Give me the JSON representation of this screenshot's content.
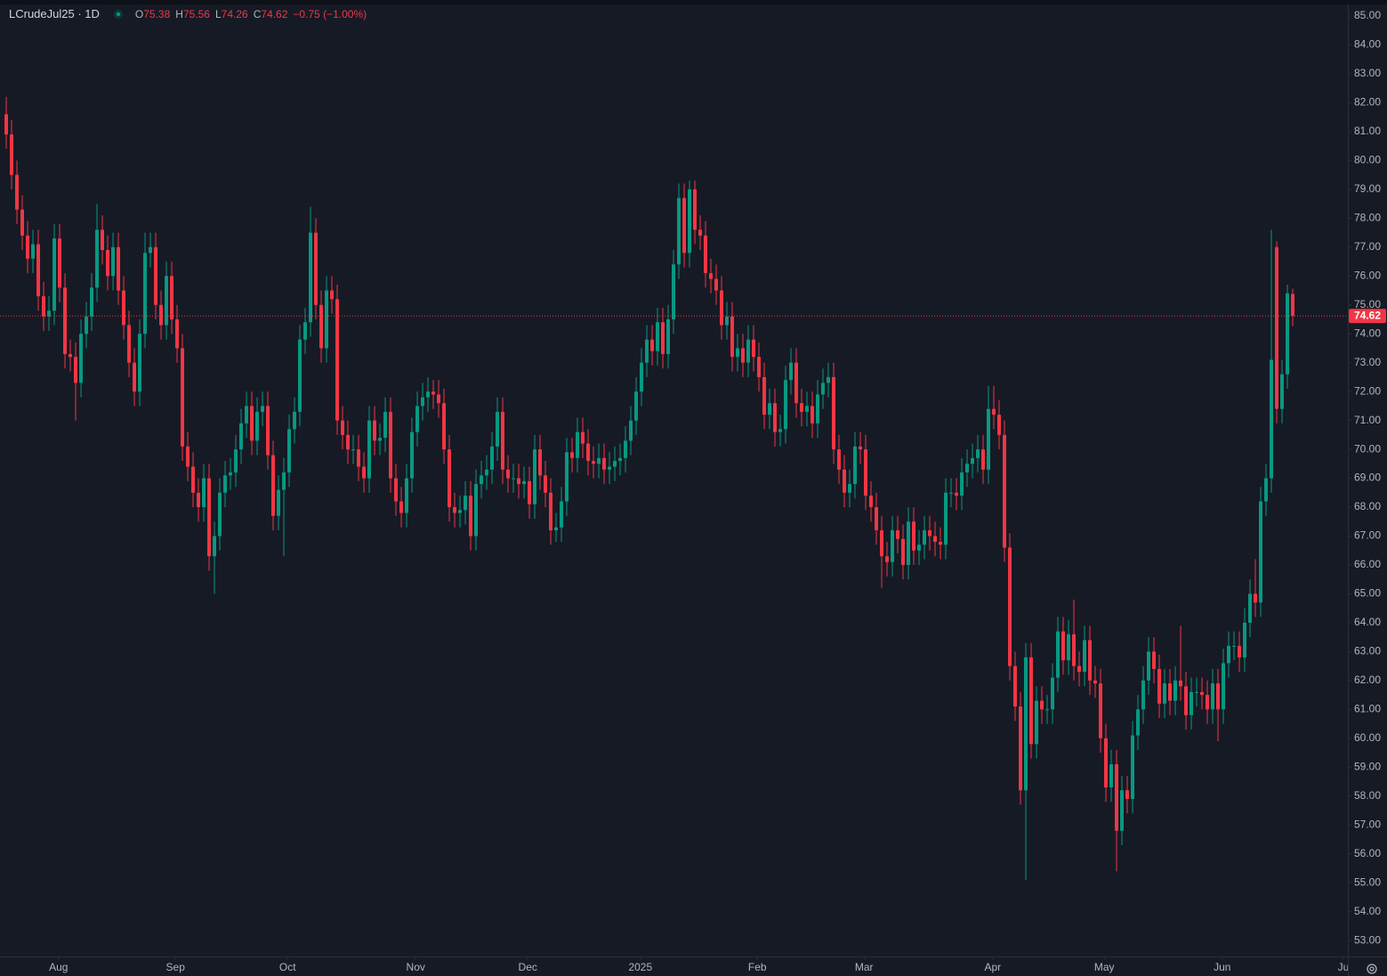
{
  "chart_data": {
    "type": "candlestick",
    "title": "LCrudeJul25 · 1D",
    "ohlc_letters": [
      "O",
      "H",
      "L",
      "C"
    ],
    "change": "−0.75 (−1.00%)",
    "up_color": "#089981",
    "down_color": "#f23645",
    "price_line": true,
    "series": {
      "open": [
        81.6,
        80.9,
        79.5,
        78.3,
        77.4,
        76.6,
        77.1,
        75.3,
        74.6,
        74.8,
        77.3,
        75.6,
        73.3,
        73.2,
        72.3,
        74.0,
        74.6,
        75.6,
        77.6,
        76.9,
        76.0,
        77.0,
        75.5,
        74.3,
        73.0,
        72.0,
        74.0,
        76.8,
        77.0,
        75.0,
        74.3,
        76.0,
        74.5,
        73.5,
        70.1,
        69.4,
        68.5,
        68.0,
        69.0,
        66.3,
        67.0,
        68.5,
        69.1,
        69.2,
        70.0,
        70.9,
        71.5,
        70.3,
        71.3,
        71.5,
        69.8,
        67.7,
        68.6,
        69.2,
        70.7,
        71.3,
        73.8,
        74.4,
        77.5,
        75.0,
        73.5,
        75.5,
        75.2,
        71.0,
        70.5,
        70.0,
        70.0,
        69.4,
        69.0,
        71.0,
        70.3,
        70.4,
        71.3,
        69.0,
        68.2,
        67.8,
        69.0,
        70.6,
        71.5,
        71.8,
        72.0,
        71.9,
        71.6,
        70.0,
        68.0,
        67.8,
        67.9,
        68.4,
        67.0,
        68.8,
        69.1,
        69.3,
        70.1,
        71.3,
        69.3,
        69.0,
        69.0,
        68.8,
        68.9,
        68.1,
        70.0,
        69.1,
        68.5,
        67.2,
        67.3,
        68.2,
        69.9,
        69.7,
        70.6,
        70.2,
        69.6,
        69.5,
        69.7,
        69.3,
        69.4,
        69.6,
        69.7,
        70.3,
        71.0,
        72.0,
        73.0,
        73.8,
        73.4,
        74.4,
        73.3,
        74.5,
        76.4,
        78.7,
        76.8,
        79.0,
        77.6,
        77.4,
        76.1,
        75.9,
        75.5,
        74.3,
        74.6,
        73.2,
        73.5,
        73.0,
        73.8,
        73.2,
        72.5,
        71.2,
        71.6,
        70.6,
        70.7,
        72.4,
        73.0,
        71.6,
        71.3,
        71.5,
        70.9,
        71.9,
        72.3,
        72.5,
        70.0,
        69.3,
        68.5,
        68.8,
        70.1,
        70.0,
        68.4,
        68.0,
        67.2,
        66.3,
        66.1,
        67.2,
        66.9,
        66.0,
        67.5,
        66.5,
        66.7,
        67.2,
        67.0,
        66.8,
        66.7,
        68.5,
        68.5,
        68.4,
        69.2,
        69.5,
        69.7,
        70.0,
        69.3,
        71.4,
        71.2,
        70.5,
        66.6,
        62.5,
        61.1,
        58.2,
        62.8,
        59.8,
        61.3,
        61.0,
        61.0,
        62.1,
        63.7,
        62.7,
        63.6,
        62.5,
        62.3,
        63.4,
        62.0,
        61.9,
        60.0,
        58.3,
        59.1,
        56.8,
        58.2,
        57.9,
        60.1,
        61.0,
        62.0,
        63.0,
        62.4,
        61.2,
        61.9,
        61.3,
        62.0,
        61.8,
        60.8,
        61.6,
        61.6,
        61.5,
        61.0,
        61.9,
        61.0,
        62.6,
        63.2,
        63.2,
        62.8,
        64.0,
        65.0,
        64.7,
        68.2,
        69.0,
        77.0,
        71.4,
        72.6,
        75.38
      ],
      "high": [
        82.2,
        81.4,
        80.0,
        78.8,
        77.9,
        77.6,
        77.6,
        75.8,
        75.3,
        77.8,
        77.8,
        76.1,
        73.8,
        73.7,
        74.5,
        75.1,
        76.1,
        78.5,
        78.1,
        77.4,
        77.5,
        77.5,
        76.0,
        74.8,
        73.5,
        74.5,
        77.5,
        77.5,
        77.5,
        75.5,
        76.5,
        76.5,
        75.0,
        74.0,
        70.6,
        69.9,
        69.0,
        69.5,
        69.5,
        67.5,
        69.0,
        69.6,
        69.7,
        70.5,
        71.4,
        72.0,
        72.0,
        71.8,
        72.0,
        72.0,
        70.3,
        69.1,
        69.7,
        71.2,
        71.8,
        74.3,
        74.9,
        78.4,
        78.0,
        75.5,
        76.0,
        76.0,
        75.7,
        71.5,
        71.0,
        70.5,
        70.5,
        69.9,
        71.5,
        71.5,
        70.9,
        71.8,
        71.8,
        69.5,
        68.7,
        69.5,
        71.1,
        72.0,
        72.3,
        72.5,
        72.4,
        72.4,
        72.1,
        70.5,
        68.5,
        68.4,
        68.9,
        68.9,
        69.3,
        69.6,
        69.8,
        70.6,
        71.8,
        71.8,
        69.8,
        69.5,
        69.5,
        69.4,
        69.4,
        70.5,
        70.5,
        69.6,
        69.0,
        67.8,
        68.7,
        70.4,
        70.4,
        71.1,
        71.1,
        70.7,
        70.1,
        70.2,
        70.2,
        69.9,
        70.1,
        70.2,
        70.8,
        71.5,
        72.5,
        73.5,
        74.3,
        74.3,
        74.9,
        74.9,
        75.0,
        76.9,
        79.2,
        79.2,
        79.3,
        79.3,
        78.1,
        77.9,
        76.6,
        76.4,
        76.0,
        75.1,
        75.1,
        74.0,
        74.0,
        74.3,
        74.3,
        73.7,
        73.0,
        72.1,
        72.1,
        71.2,
        72.9,
        73.5,
        73.5,
        72.1,
        72.0,
        72.0,
        72.4,
        72.8,
        73.0,
        73.0,
        70.5,
        69.8,
        69.3,
        70.6,
        70.6,
        70.5,
        68.9,
        68.5,
        67.7,
        66.8,
        67.7,
        67.7,
        67.4,
        68.0,
        68.0,
        67.2,
        67.7,
        67.7,
        67.5,
        67.3,
        69.0,
        69.0,
        69.0,
        69.7,
        70.0,
        70.2,
        70.5,
        70.5,
        72.2,
        72.2,
        71.7,
        71.0,
        67.1,
        63.0,
        61.6,
        63.3,
        63.3,
        61.8,
        61.8,
        61.5,
        62.6,
        64.2,
        64.2,
        64.1,
        64.8,
        63.0,
        63.9,
        63.9,
        62.5,
        62.4,
        60.5,
        59.6,
        59.6,
        58.7,
        58.7,
        60.6,
        61.5,
        62.5,
        63.5,
        63.5,
        62.9,
        62.4,
        62.4,
        62.5,
        63.9,
        62.3,
        62.1,
        62.1,
        62.1,
        62.0,
        62.4,
        62.4,
        63.1,
        63.7,
        63.7,
        63.7,
        64.5,
        65.5,
        66.2,
        68.7,
        69.5,
        77.6,
        77.2,
        73.1,
        75.7,
        75.56
      ],
      "low": [
        80.4,
        79.0,
        77.8,
        76.9,
        76.1,
        76.1,
        74.8,
        74.1,
        74.1,
        74.3,
        75.1,
        72.8,
        72.7,
        71.0,
        71.8,
        73.5,
        74.1,
        75.1,
        76.4,
        75.5,
        75.5,
        75.0,
        73.8,
        72.5,
        71.5,
        71.5,
        73.5,
        76.3,
        74.5,
        73.8,
        73.8,
        74.0,
        73.0,
        69.6,
        68.9,
        68.0,
        67.5,
        67.5,
        65.8,
        65.0,
        66.5,
        68.0,
        68.6,
        68.7,
        69.5,
        70.4,
        69.8,
        69.8,
        70.8,
        69.3,
        67.2,
        67.2,
        66.3,
        68.7,
        70.2,
        70.8,
        73.3,
        73.9,
        74.5,
        73.0,
        73.0,
        74.7,
        70.5,
        70.0,
        69.5,
        69.5,
        68.9,
        68.5,
        68.5,
        69.8,
        69.8,
        69.9,
        68.5,
        67.7,
        67.3,
        67.3,
        68.5,
        70.1,
        71.0,
        71.3,
        71.4,
        71.1,
        69.5,
        67.5,
        67.3,
        67.3,
        67.4,
        66.5,
        66.5,
        68.3,
        68.6,
        68.8,
        69.6,
        68.8,
        68.5,
        68.5,
        68.3,
        68.3,
        67.6,
        67.6,
        68.6,
        68.0,
        66.7,
        66.8,
        66.8,
        67.7,
        69.2,
        69.2,
        69.7,
        69.1,
        69.0,
        69.0,
        68.8,
        68.8,
        68.9,
        69.1,
        69.2,
        69.8,
        70.5,
        71.5,
        72.5,
        72.9,
        72.9,
        72.8,
        72.8,
        74.0,
        75.9,
        76.3,
        76.3,
        77.1,
        76.9,
        75.6,
        75.4,
        75.0,
        73.8,
        73.8,
        72.7,
        72.7,
        72.5,
        72.5,
        72.7,
        72.0,
        70.7,
        70.7,
        70.1,
        70.1,
        70.2,
        71.9,
        71.1,
        70.8,
        70.8,
        70.4,
        70.4,
        71.4,
        71.8,
        69.5,
        68.8,
        68.0,
        68.0,
        68.3,
        69.5,
        67.9,
        67.5,
        66.7,
        65.2,
        65.6,
        65.6,
        66.4,
        65.5,
        65.5,
        66.0,
        66.0,
        66.2,
        66.5,
        66.3,
        66.2,
        66.2,
        68.0,
        67.9,
        67.9,
        68.7,
        69.0,
        69.2,
        68.8,
        68.8,
        70.7,
        70.0,
        66.1,
        62.0,
        60.6,
        57.7,
        55.1,
        59.3,
        59.3,
        60.5,
        60.5,
        60.5,
        61.6,
        62.2,
        62.2,
        62.0,
        61.8,
        61.8,
        61.5,
        61.4,
        59.5,
        57.8,
        57.8,
        55.4,
        56.3,
        57.4,
        57.4,
        59.6,
        60.5,
        61.5,
        61.9,
        60.7,
        60.7,
        60.8,
        60.8,
        61.3,
        60.3,
        60.3,
        61.1,
        61.0,
        60.5,
        60.5,
        59.9,
        60.5,
        62.1,
        62.7,
        62.3,
        62.3,
        63.5,
        64.2,
        64.2,
        67.7,
        68.5,
        70.9,
        70.9,
        72.1,
        74.26
      ],
      "close": [
        80.9,
        79.5,
        78.3,
        77.4,
        76.6,
        77.1,
        75.3,
        74.6,
        74.8,
        77.3,
        75.6,
        73.3,
        73.2,
        72.3,
        74.0,
        74.6,
        75.6,
        77.6,
        76.9,
        76.0,
        77.0,
        75.5,
        74.3,
        73.0,
        72.0,
        74.0,
        76.8,
        77.0,
        75.0,
        74.3,
        76.0,
        74.5,
        73.5,
        70.1,
        69.4,
        68.5,
        68.0,
        69.0,
        66.3,
        67.0,
        68.5,
        69.1,
        69.2,
        70.0,
        70.9,
        71.5,
        70.3,
        71.3,
        71.5,
        69.8,
        67.7,
        68.6,
        69.2,
        70.7,
        71.3,
        73.8,
        74.4,
        77.5,
        75.0,
        73.5,
        75.5,
        75.2,
        71.0,
        70.5,
        70.0,
        70.0,
        69.4,
        69.0,
        71.0,
        70.3,
        70.4,
        71.3,
        69.0,
        68.2,
        67.8,
        69.0,
        70.6,
        71.5,
        71.8,
        72.0,
        71.9,
        71.6,
        70.0,
        68.0,
        67.8,
        67.9,
        68.4,
        67.0,
        68.8,
        69.1,
        69.3,
        70.1,
        71.3,
        69.3,
        69.0,
        69.0,
        68.8,
        68.9,
        68.1,
        70.0,
        69.1,
        68.5,
        67.2,
        67.3,
        68.2,
        69.9,
        69.7,
        70.6,
        70.2,
        69.6,
        69.5,
        69.7,
        69.3,
        69.4,
        69.6,
        69.7,
        70.3,
        71.0,
        72.0,
        73.0,
        73.8,
        73.4,
        74.4,
        73.3,
        74.5,
        76.4,
        78.7,
        76.8,
        79.0,
        77.6,
        77.4,
        76.1,
        75.9,
        75.5,
        74.3,
        74.6,
        73.2,
        73.5,
        73.0,
        73.8,
        73.2,
        72.5,
        71.2,
        71.6,
        70.6,
        70.7,
        72.4,
        73.0,
        71.6,
        71.3,
        71.5,
        70.9,
        71.9,
        72.3,
        72.5,
        70.0,
        69.3,
        68.5,
        68.8,
        70.1,
        70.0,
        68.4,
        68.0,
        67.2,
        66.3,
        66.1,
        67.2,
        66.9,
        66.0,
        67.5,
        66.5,
        66.7,
        67.2,
        67.0,
        66.8,
        66.7,
        68.5,
        68.5,
        68.4,
        69.2,
        69.5,
        69.7,
        70.0,
        69.3,
        71.4,
        71.2,
        70.5,
        66.6,
        62.5,
        61.1,
        58.2,
        62.8,
        59.8,
        61.3,
        61.0,
        61.0,
        62.1,
        63.7,
        62.7,
        63.6,
        62.5,
        62.3,
        63.4,
        62.0,
        61.9,
        60.0,
        58.3,
        59.1,
        56.8,
        58.2,
        57.9,
        60.1,
        61.0,
        62.0,
        63.0,
        62.4,
        61.2,
        61.9,
        61.3,
        62.0,
        61.8,
        60.8,
        61.6,
        61.6,
        61.5,
        61.0,
        61.9,
        61.0,
        62.6,
        63.2,
        63.2,
        62.8,
        64.0,
        65.0,
        64.7,
        68.2,
        69.0,
        73.1,
        71.4,
        72.6,
        75.4,
        74.62
      ]
    },
    "xlim": [
      -1.17,
      251.33
    ],
    "xticks": [
      {
        "value": 9.8,
        "label": "Aug"
      },
      {
        "value": 31.7,
        "label": "Sep"
      },
      {
        "value": 52.7,
        "label": "Oct"
      },
      {
        "value": 76.7,
        "label": "Nov"
      },
      {
        "value": 97.7,
        "label": "Dec"
      },
      {
        "value": 118.8,
        "label": "2025"
      },
      {
        "value": 140.7,
        "label": "Feb"
      },
      {
        "value": 160.7,
        "label": "Mar"
      },
      {
        "value": 184.8,
        "label": "Apr"
      },
      {
        "value": 205.7,
        "label": "May"
      },
      {
        "value": 227.8,
        "label": "Jun"
      },
      {
        "value": 250.5,
        "label": "Ju"
      }
    ],
    "ylim": [
      52.45,
      85.4
    ],
    "yticks": [
      {
        "value": 53,
        "label": "53.00"
      },
      {
        "value": 54,
        "label": "54.00"
      },
      {
        "value": 55,
        "label": "55.00"
      },
      {
        "value": 56,
        "label": "56.00"
      },
      {
        "value": 57,
        "label": "57.00"
      },
      {
        "value": 58,
        "label": "58.00"
      },
      {
        "value": 59,
        "label": "59.00"
      },
      {
        "value": 60,
        "label": "60.00"
      },
      {
        "value": 61,
        "label": "61.00"
      },
      {
        "value": 62,
        "label": "62.00"
      },
      {
        "value": 63,
        "label": "63.00"
      },
      {
        "value": 64,
        "label": "64.00"
      },
      {
        "value": 65,
        "label": "65.00"
      },
      {
        "value": 66,
        "label": "66.00"
      },
      {
        "value": 67,
        "label": "67.00"
      },
      {
        "value": 68,
        "label": "68.00"
      },
      {
        "value": 69,
        "label": "69.00"
      },
      {
        "value": 70,
        "label": "70.00"
      },
      {
        "value": 71,
        "label": "71.00"
      },
      {
        "value": 72,
        "label": "72.00"
      },
      {
        "value": 73,
        "label": "73.00"
      },
      {
        "value": 74,
        "label": "74.00"
      },
      {
        "value": 75,
        "label": "75.00"
      },
      {
        "value": 76,
        "label": "76.00"
      },
      {
        "value": 77,
        "label": "77.00"
      },
      {
        "value": 78,
        "label": "78.00"
      },
      {
        "value": 79,
        "label": "79.00"
      },
      {
        "value": 80,
        "label": "80.00"
      },
      {
        "value": 81,
        "label": "81.00"
      },
      {
        "value": 82,
        "label": "82.00"
      },
      {
        "value": 83,
        "label": "83.00"
      },
      {
        "value": 84,
        "label": "84.00"
      },
      {
        "value": 85,
        "label": "85.00"
      }
    ]
  }
}
